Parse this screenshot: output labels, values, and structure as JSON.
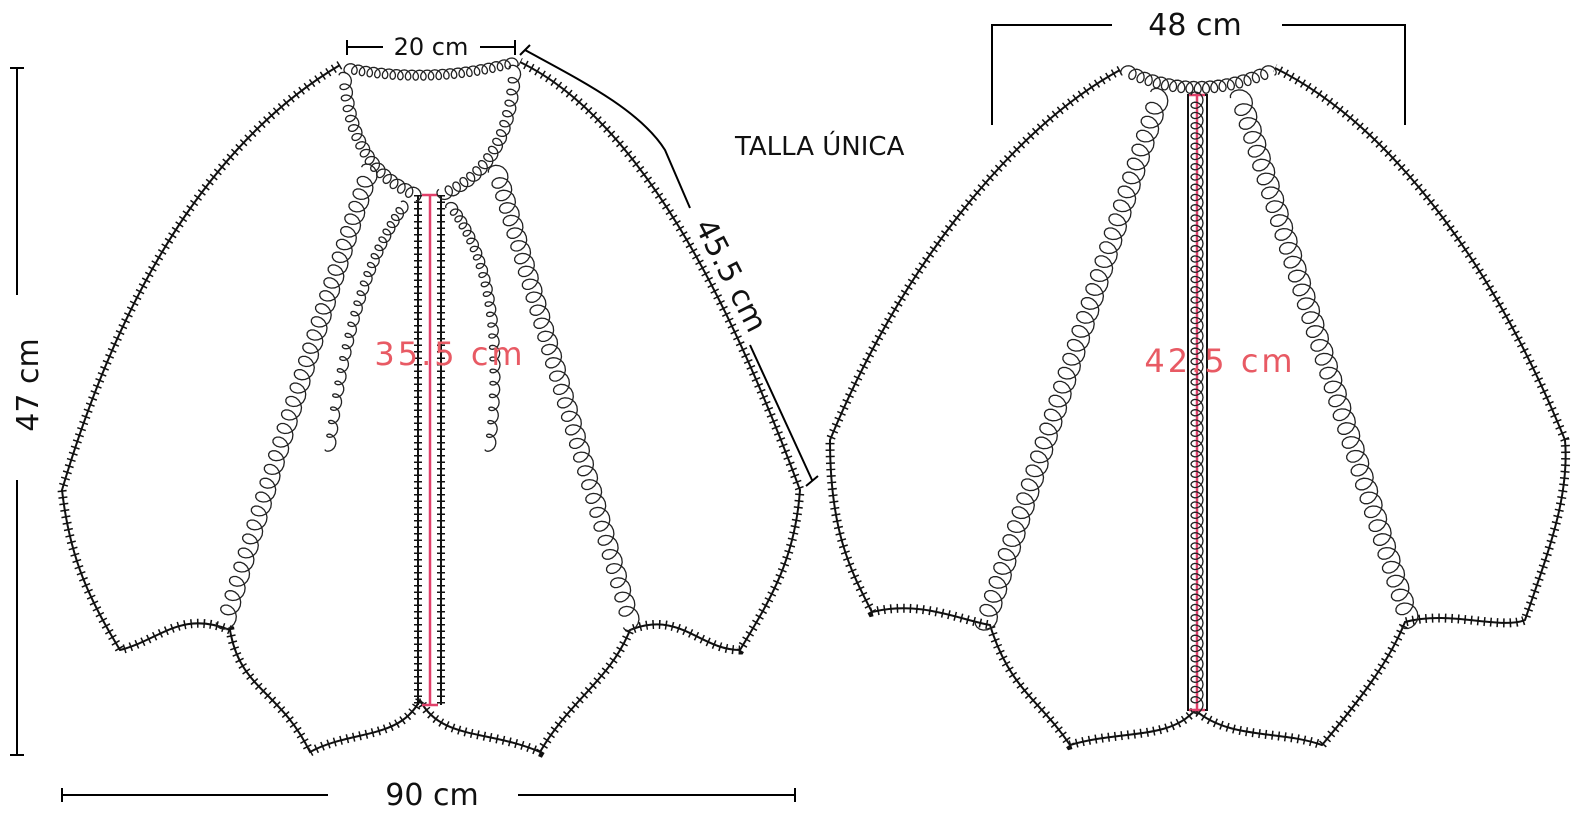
{
  "size_label": "TALLA ÚNICA",
  "front": {
    "neck_width": "20 cm",
    "side_length": "45.5 cm",
    "center_length": "35.5 cm",
    "height": "47 cm",
    "bottom_width": "90 cm"
  },
  "back": {
    "top_width": "48 cm",
    "center_length": "42.5 cm"
  }
}
